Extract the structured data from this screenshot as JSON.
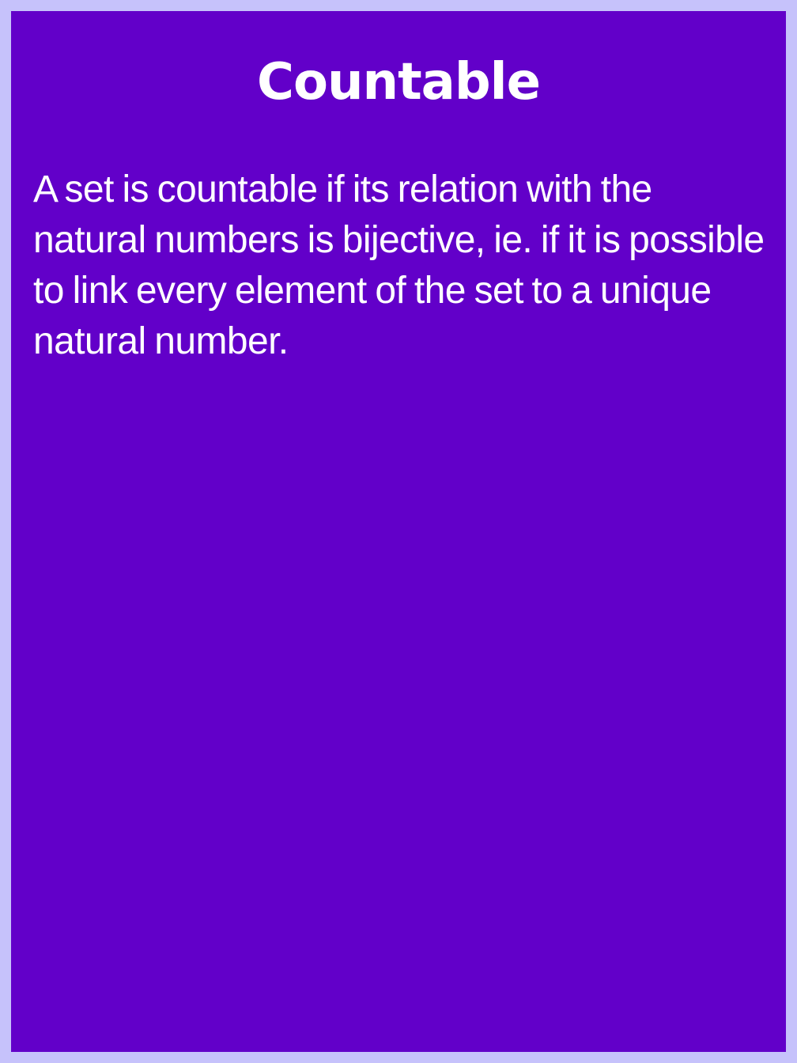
{
  "card": {
    "title": "Countable",
    "body": "A set is countable if its relation with the natural numbers is bijective, ie. if it is possible to link every element of the set to a unique natural number."
  },
  "colors": {
    "page_background": "#c6c2fb",
    "card_background": "#6200c9",
    "text": "#ffffff"
  }
}
